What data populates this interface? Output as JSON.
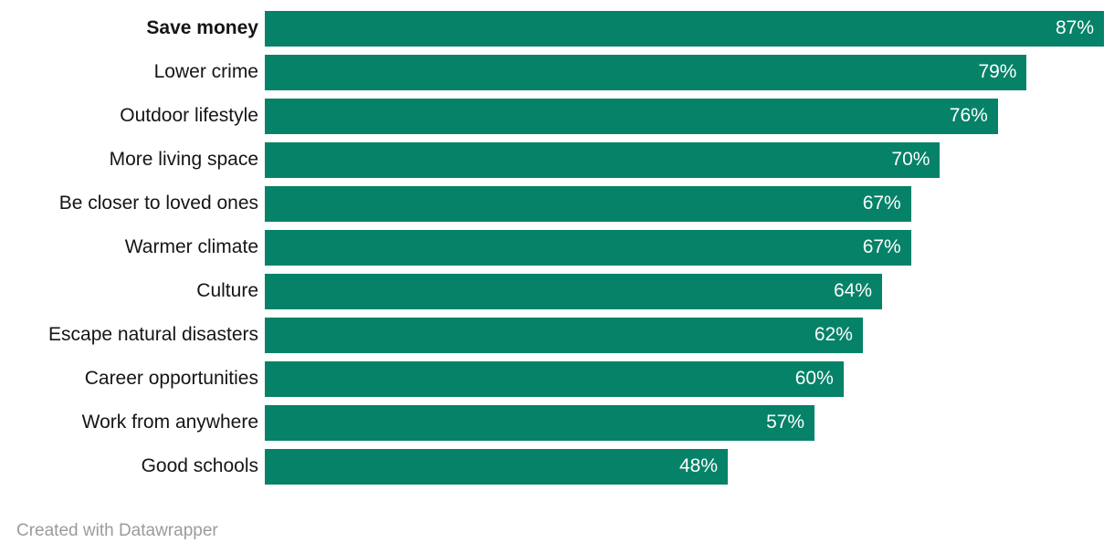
{
  "chart_data": {
    "type": "bar",
    "orientation": "horizontal",
    "categories": [
      "Save money",
      "Lower crime",
      "Outdoor lifestyle",
      "More living space",
      "Be closer to loved ones",
      "Warmer climate",
      "Culture",
      "Escape natural disasters",
      "Career opportunities",
      "Work from anywhere",
      "Good schools"
    ],
    "values": [
      87,
      79,
      76,
      70,
      67,
      67,
      64,
      62,
      60,
      57,
      48
    ],
    "value_labels": [
      "87%",
      "79%",
      "76%",
      "70%",
      "67%",
      "67%",
      "64%",
      "62%",
      "60%",
      "57%",
      "48%"
    ],
    "emphasized_category_index": 0,
    "title": "",
    "xlabel": "",
    "ylabel": "",
    "xlim": [
      0,
      87
    ],
    "grid": false,
    "legend": false,
    "value_label_position": "inside-end",
    "bar_color": "#058268",
    "value_label_color": "#ffffff",
    "category_label_color": "#151515"
  },
  "colors": {
    "bar": "#058268",
    "value_text": "#ffffff",
    "label_text": "#151515",
    "footer_text": "#9b9b9b",
    "background": "#ffffff"
  },
  "footer": {
    "credit": "Created with Datawrapper"
  }
}
